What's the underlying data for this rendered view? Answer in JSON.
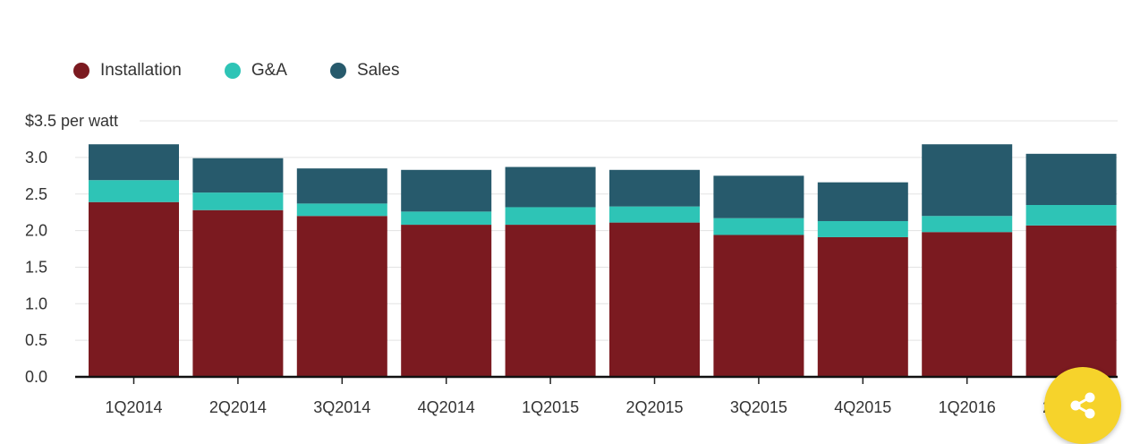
{
  "chart_data": {
    "type": "bar",
    "stacked": true,
    "ylabel": "$3.5 per watt",
    "ylim": [
      0,
      3.5
    ],
    "yticks": [
      "0.0",
      "0.5",
      "1.0",
      "1.5",
      "2.0",
      "2.5",
      "3.0"
    ],
    "categories": [
      "1Q2014",
      "2Q2014",
      "3Q2014",
      "4Q2014",
      "1Q2015",
      "2Q2015",
      "3Q2015",
      "4Q2015",
      "1Q2016",
      "2Q2016"
    ],
    "series": [
      {
        "name": "Installation",
        "color": "#7b1a20",
        "values": [
          2.39,
          2.28,
          2.2,
          2.08,
          2.08,
          2.11,
          1.94,
          1.91,
          1.98,
          2.07
        ]
      },
      {
        "name": "G&A",
        "color": "#2ec4b6",
        "values": [
          0.3,
          0.24,
          0.17,
          0.18,
          0.24,
          0.22,
          0.23,
          0.22,
          0.22,
          0.28
        ]
      },
      {
        "name": "Sales",
        "color": "#275a6c",
        "values": [
          0.49,
          0.47,
          0.48,
          0.57,
          0.55,
          0.5,
          0.58,
          0.53,
          0.98,
          0.7
        ]
      }
    ],
    "grid": true,
    "legend_position": "top-left"
  },
  "share_icon": "share-icon"
}
